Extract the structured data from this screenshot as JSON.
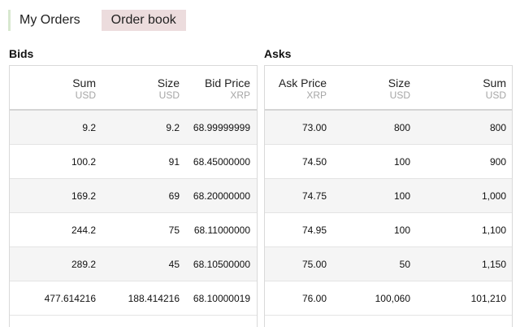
{
  "tabs": {
    "my_orders": "My Orders",
    "order_book": "Order book"
  },
  "bids": {
    "title": "Bids",
    "columns": [
      {
        "name": "Sum",
        "unit": "USD"
      },
      {
        "name": "Size",
        "unit": "USD"
      },
      {
        "name": "Bid Price",
        "unit": "XRP"
      }
    ],
    "rows": [
      [
        "9.2",
        "9.2",
        "68.99999999"
      ],
      [
        "100.2",
        "91",
        "68.45000000"
      ],
      [
        "169.2",
        "69",
        "68.20000000"
      ],
      [
        "244.2",
        "75",
        "68.11000000"
      ],
      [
        "289.2",
        "45",
        "68.10500000"
      ],
      [
        "477.614216",
        "188.414216",
        "68.10000019"
      ]
    ]
  },
  "asks": {
    "title": "Asks",
    "columns": [
      {
        "name": "Ask Price",
        "unit": "XRP"
      },
      {
        "name": "Size",
        "unit": "USD"
      },
      {
        "name": "Sum",
        "unit": "USD"
      }
    ],
    "rows": [
      [
        "73.00",
        "800",
        "800"
      ],
      [
        "74.50",
        "100",
        "900"
      ],
      [
        "74.75",
        "100",
        "1,000"
      ],
      [
        "74.95",
        "100",
        "1,100"
      ],
      [
        "75.00",
        "50",
        "1,150"
      ],
      [
        "76.00",
        "100,060",
        "101,210"
      ]
    ]
  }
}
